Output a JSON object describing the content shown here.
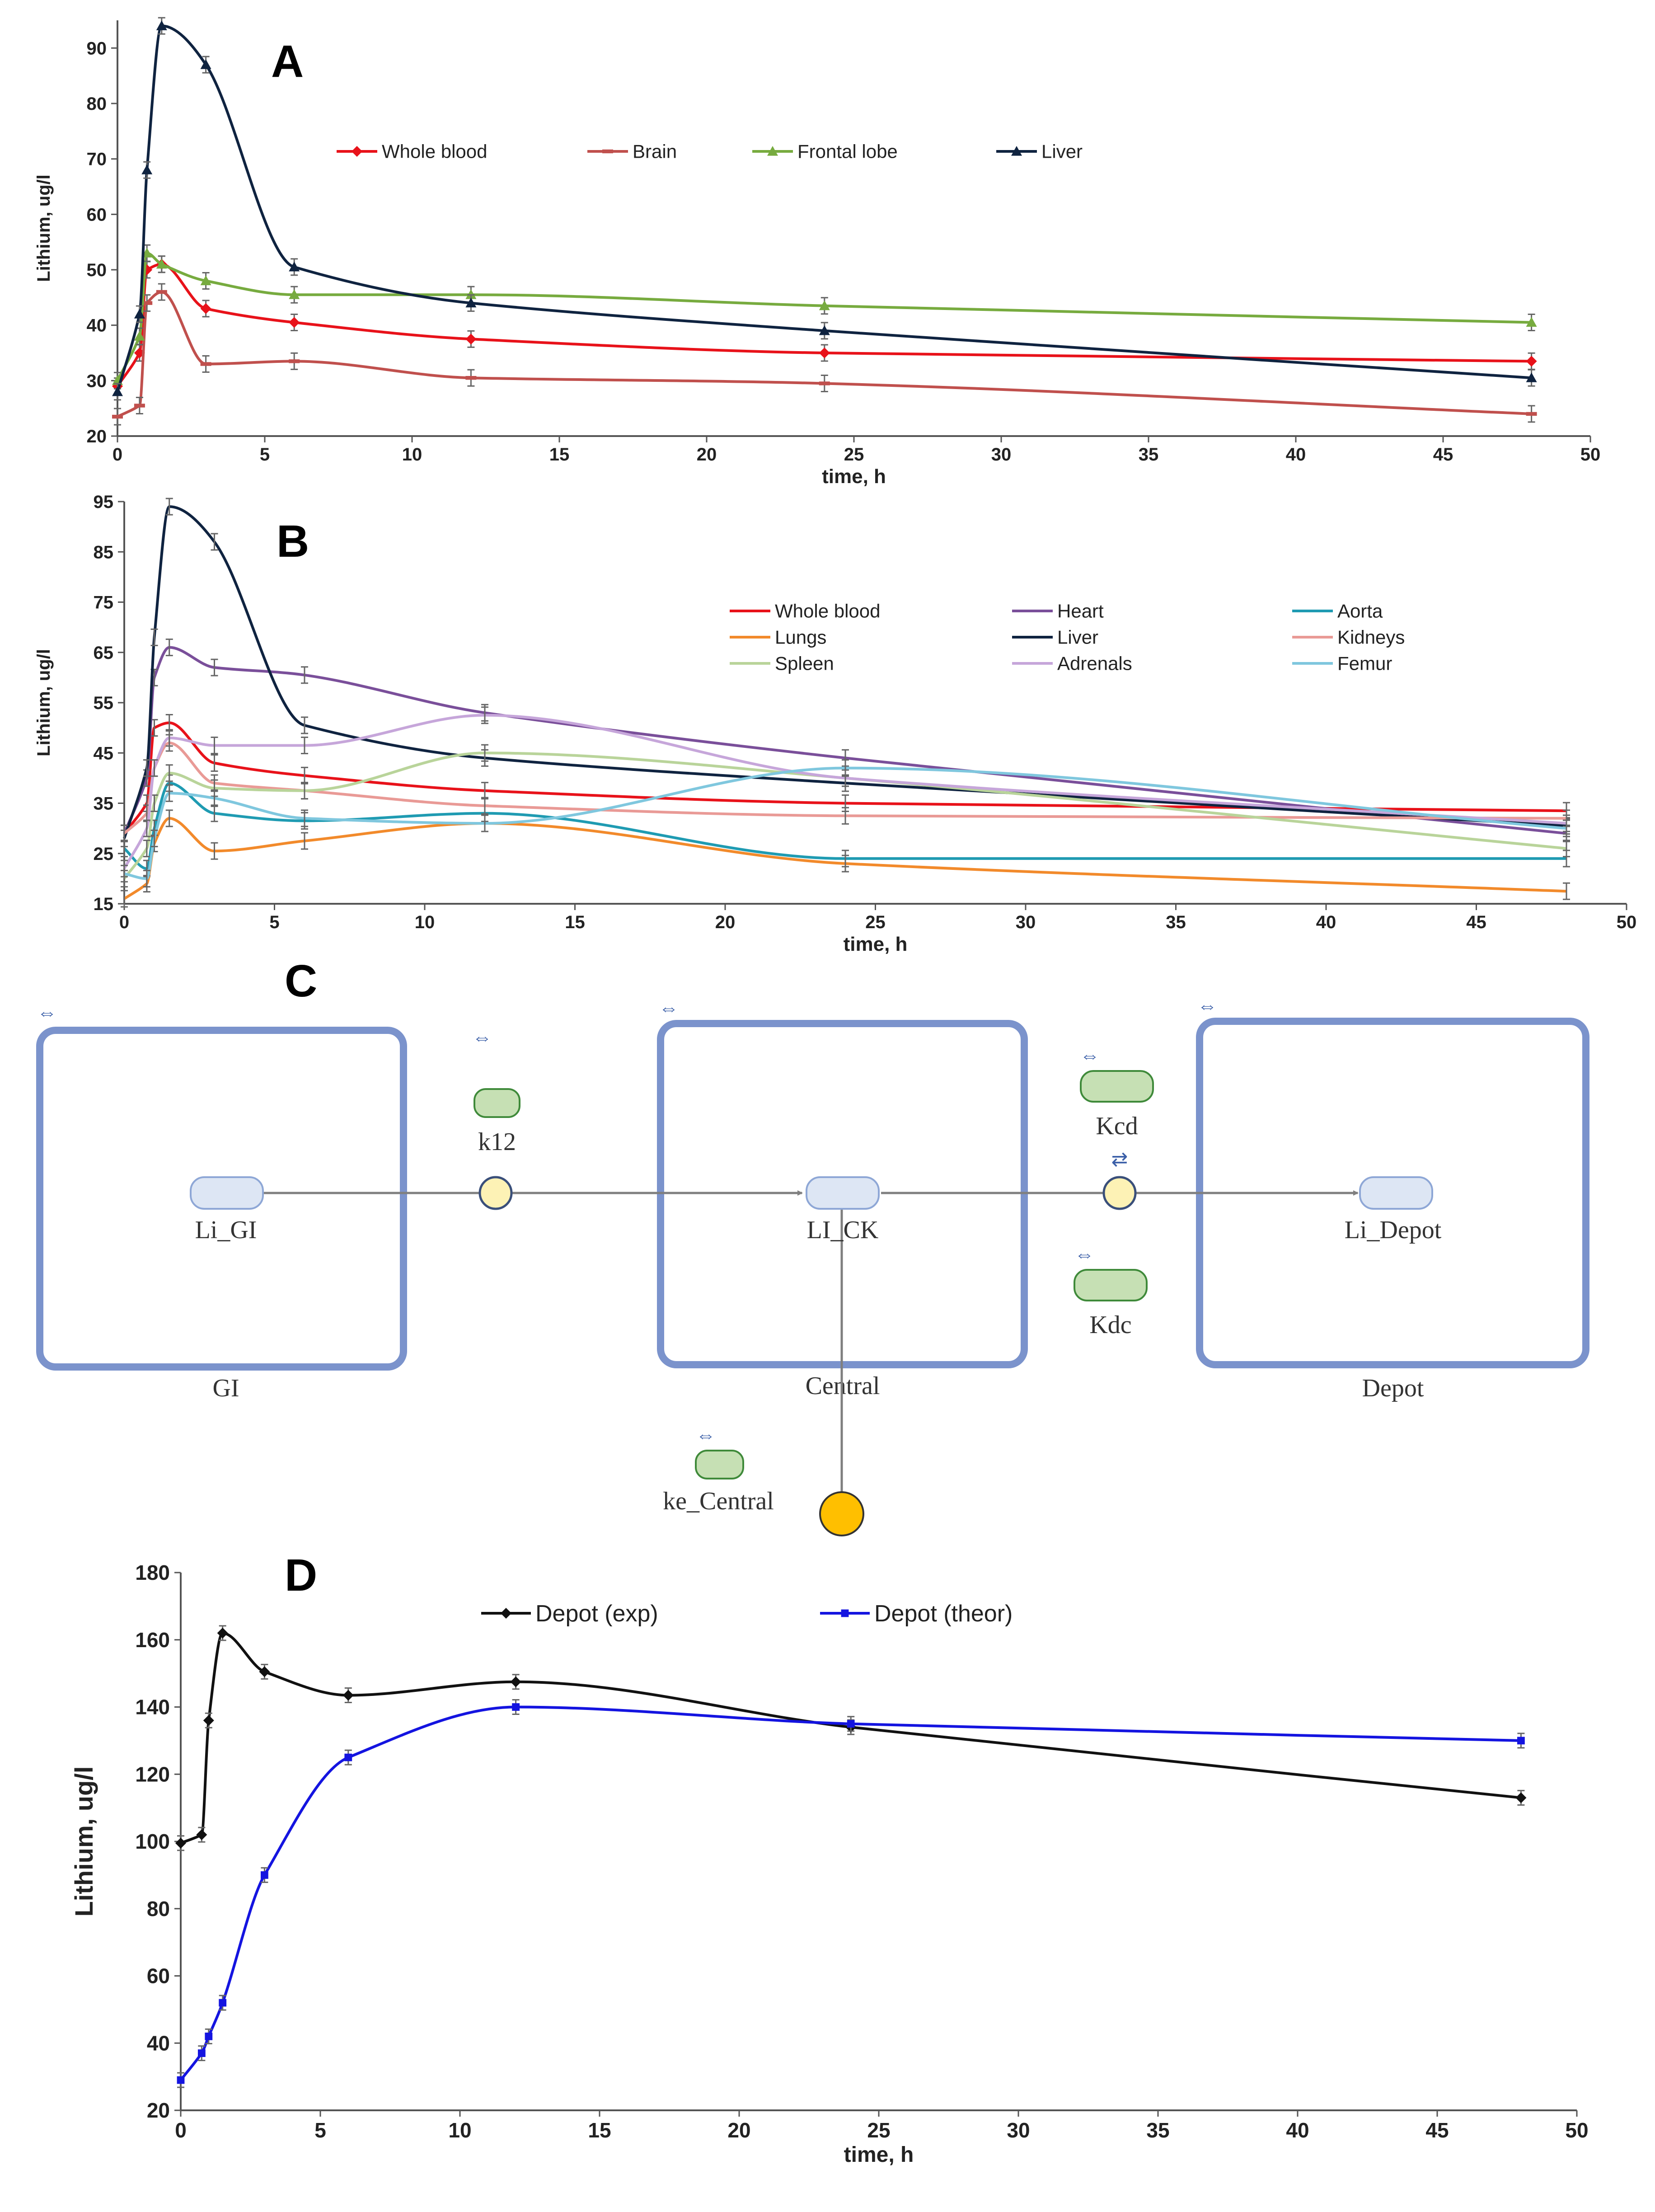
{
  "chart_data": [
    {
      "panel": "A",
      "type": "line",
      "xlabel": "time, h",
      "ylabel": "Lithium, ug/l",
      "xlim": [
        0,
        50
      ],
      "ylim": [
        20,
        95
      ],
      "xticks": [
        0,
        5,
        10,
        15,
        20,
        25,
        30,
        35,
        40,
        45,
        50
      ],
      "yticks": [
        20,
        30,
        40,
        50,
        60,
        70,
        80,
        90
      ],
      "legend_position": "top-center",
      "x": [
        0,
        0.75,
        1,
        1.5,
        3,
        6,
        12,
        24,
        48
      ],
      "series": [
        {
          "name": "Whole blood",
          "color": "#e8121a",
          "marker": "diamond",
          "values": [
            29,
            35,
            50,
            51,
            43,
            40.5,
            37.5,
            35,
            33.5
          ]
        },
        {
          "name": "Brain",
          "color": "#c0504d",
          "marker": "dash",
          "values": [
            23.5,
            25.5,
            44,
            46,
            33,
            33.5,
            30.5,
            29.5,
            24
          ]
        },
        {
          "name": "Frontal lobe",
          "color": "#77ab3f",
          "marker": "triangle",
          "values": [
            30,
            38,
            53,
            51,
            48,
            45.5,
            45.5,
            43.5,
            40.5
          ]
        },
        {
          "name": "Liver",
          "color": "#0f2340",
          "marker": "triangle",
          "values": [
            28,
            42,
            68,
            94,
            87,
            50.5,
            44,
            39,
            30.5
          ]
        }
      ]
    },
    {
      "panel": "B",
      "type": "line",
      "xlabel": "time, h",
      "ylabel": "Lithium, ug/l",
      "xlim": [
        0,
        50
      ],
      "ylim": [
        15,
        95
      ],
      "xticks": [
        0,
        5,
        10,
        15,
        20,
        25,
        30,
        35,
        40,
        45,
        50
      ],
      "yticks": [
        15,
        25,
        35,
        45,
        55,
        65,
        75,
        85,
        95
      ],
      "legend_position": "top-right",
      "x": [
        0,
        0.75,
        1,
        1.5,
        3,
        6,
        12,
        24,
        48
      ],
      "series": [
        {
          "name": "Whole blood",
          "color": "#e8121a",
          "values": [
            29,
            35,
            50,
            51,
            43,
            40.5,
            37.5,
            35,
            33.5
          ]
        },
        {
          "name": "Heart",
          "color": "#7a4f9a",
          "values": [
            29,
            40,
            60,
            66,
            62,
            60.5,
            53,
            44,
            29
          ]
        },
        {
          "name": "Aorta",
          "color": "#1f9bb2",
          "values": [
            26,
            22,
            30,
            39,
            33,
            31.5,
            33,
            24,
            24
          ]
        },
        {
          "name": "Lungs",
          "color": "#f28a2b",
          "values": [
            16,
            19,
            27,
            32,
            25.5,
            27.5,
            31,
            23,
            17.5
          ]
        },
        {
          "name": "Liver",
          "color": "#0f2340",
          "values": [
            28,
            42,
            68,
            94,
            87,
            50.5,
            44,
            39,
            30.5
          ]
        },
        {
          "name": "Kidneys",
          "color": "#e99a96",
          "values": [
            29,
            33,
            42,
            47,
            39,
            37.5,
            34.5,
            32.5,
            32
          ]
        },
        {
          "name": "Spleen",
          "color": "#b9d49a",
          "values": [
            20,
            26,
            35,
            41,
            38,
            37.5,
            45,
            40,
            26
          ]
        },
        {
          "name": "Adrenals",
          "color": "#c6a6da",
          "values": [
            22,
            30,
            42,
            48,
            46.5,
            46.5,
            52.5,
            40,
            31
          ]
        },
        {
          "name": "Femur",
          "color": "#7fc7de",
          "values": [
            21,
            20,
            28,
            37,
            36,
            32,
            31,
            42,
            30
          ]
        }
      ]
    },
    {
      "panel": "D",
      "type": "line",
      "xlabel": "time, h",
      "ylabel": "Lithium, ug/l",
      "xlim": [
        0,
        50
      ],
      "ylim": [
        20,
        180
      ],
      "xticks": [
        0,
        5,
        10,
        15,
        20,
        25,
        30,
        35,
        40,
        45,
        50
      ],
      "yticks": [
        20,
        40,
        60,
        80,
        100,
        120,
        140,
        160,
        180
      ],
      "legend_position": "top-center",
      "series": [
        {
          "name": "Depot (exp)",
          "color": "#111111",
          "x": [
            0,
            0.75,
            1,
            1.5,
            3,
            6,
            12,
            24,
            48
          ],
          "values": [
            99.5,
            102,
            136,
            162,
            150.5,
            143.5,
            147.5,
            134,
            113
          ]
        },
        {
          "name": "Depot (theor)",
          "color": "#1414e0",
          "x": [
            0,
            0.75,
            1,
            1.5,
            3,
            6,
            12,
            24,
            48
          ],
          "values": [
            29,
            37,
            42,
            52,
            90,
            125,
            140,
            135,
            130
          ]
        }
      ]
    }
  ],
  "panel_labels": {
    "a": "A",
    "b": "B",
    "c": "C",
    "d": "D"
  },
  "diagram": {
    "compartments": {
      "gi": "GI",
      "central": "Central",
      "depot": "Depot"
    },
    "species": {
      "li_gi": "Li_GI",
      "li_ck": "LI_CK",
      "li_depot": "Li_Depot"
    },
    "parameters": {
      "k12": "k12",
      "kcd": "Kcd",
      "kdc": "Kdc",
      "ke_central": "ke_Central"
    },
    "colors": {
      "compartment": "#7b93cc",
      "species_fill": "#dde6f4",
      "param_fill": "#c6e0b4",
      "param_stroke": "#3f8a3a",
      "reaction_fill": "#fdf2b5",
      "sink_fill": "#ffbf00",
      "arrow": "#7f7f7f"
    }
  }
}
